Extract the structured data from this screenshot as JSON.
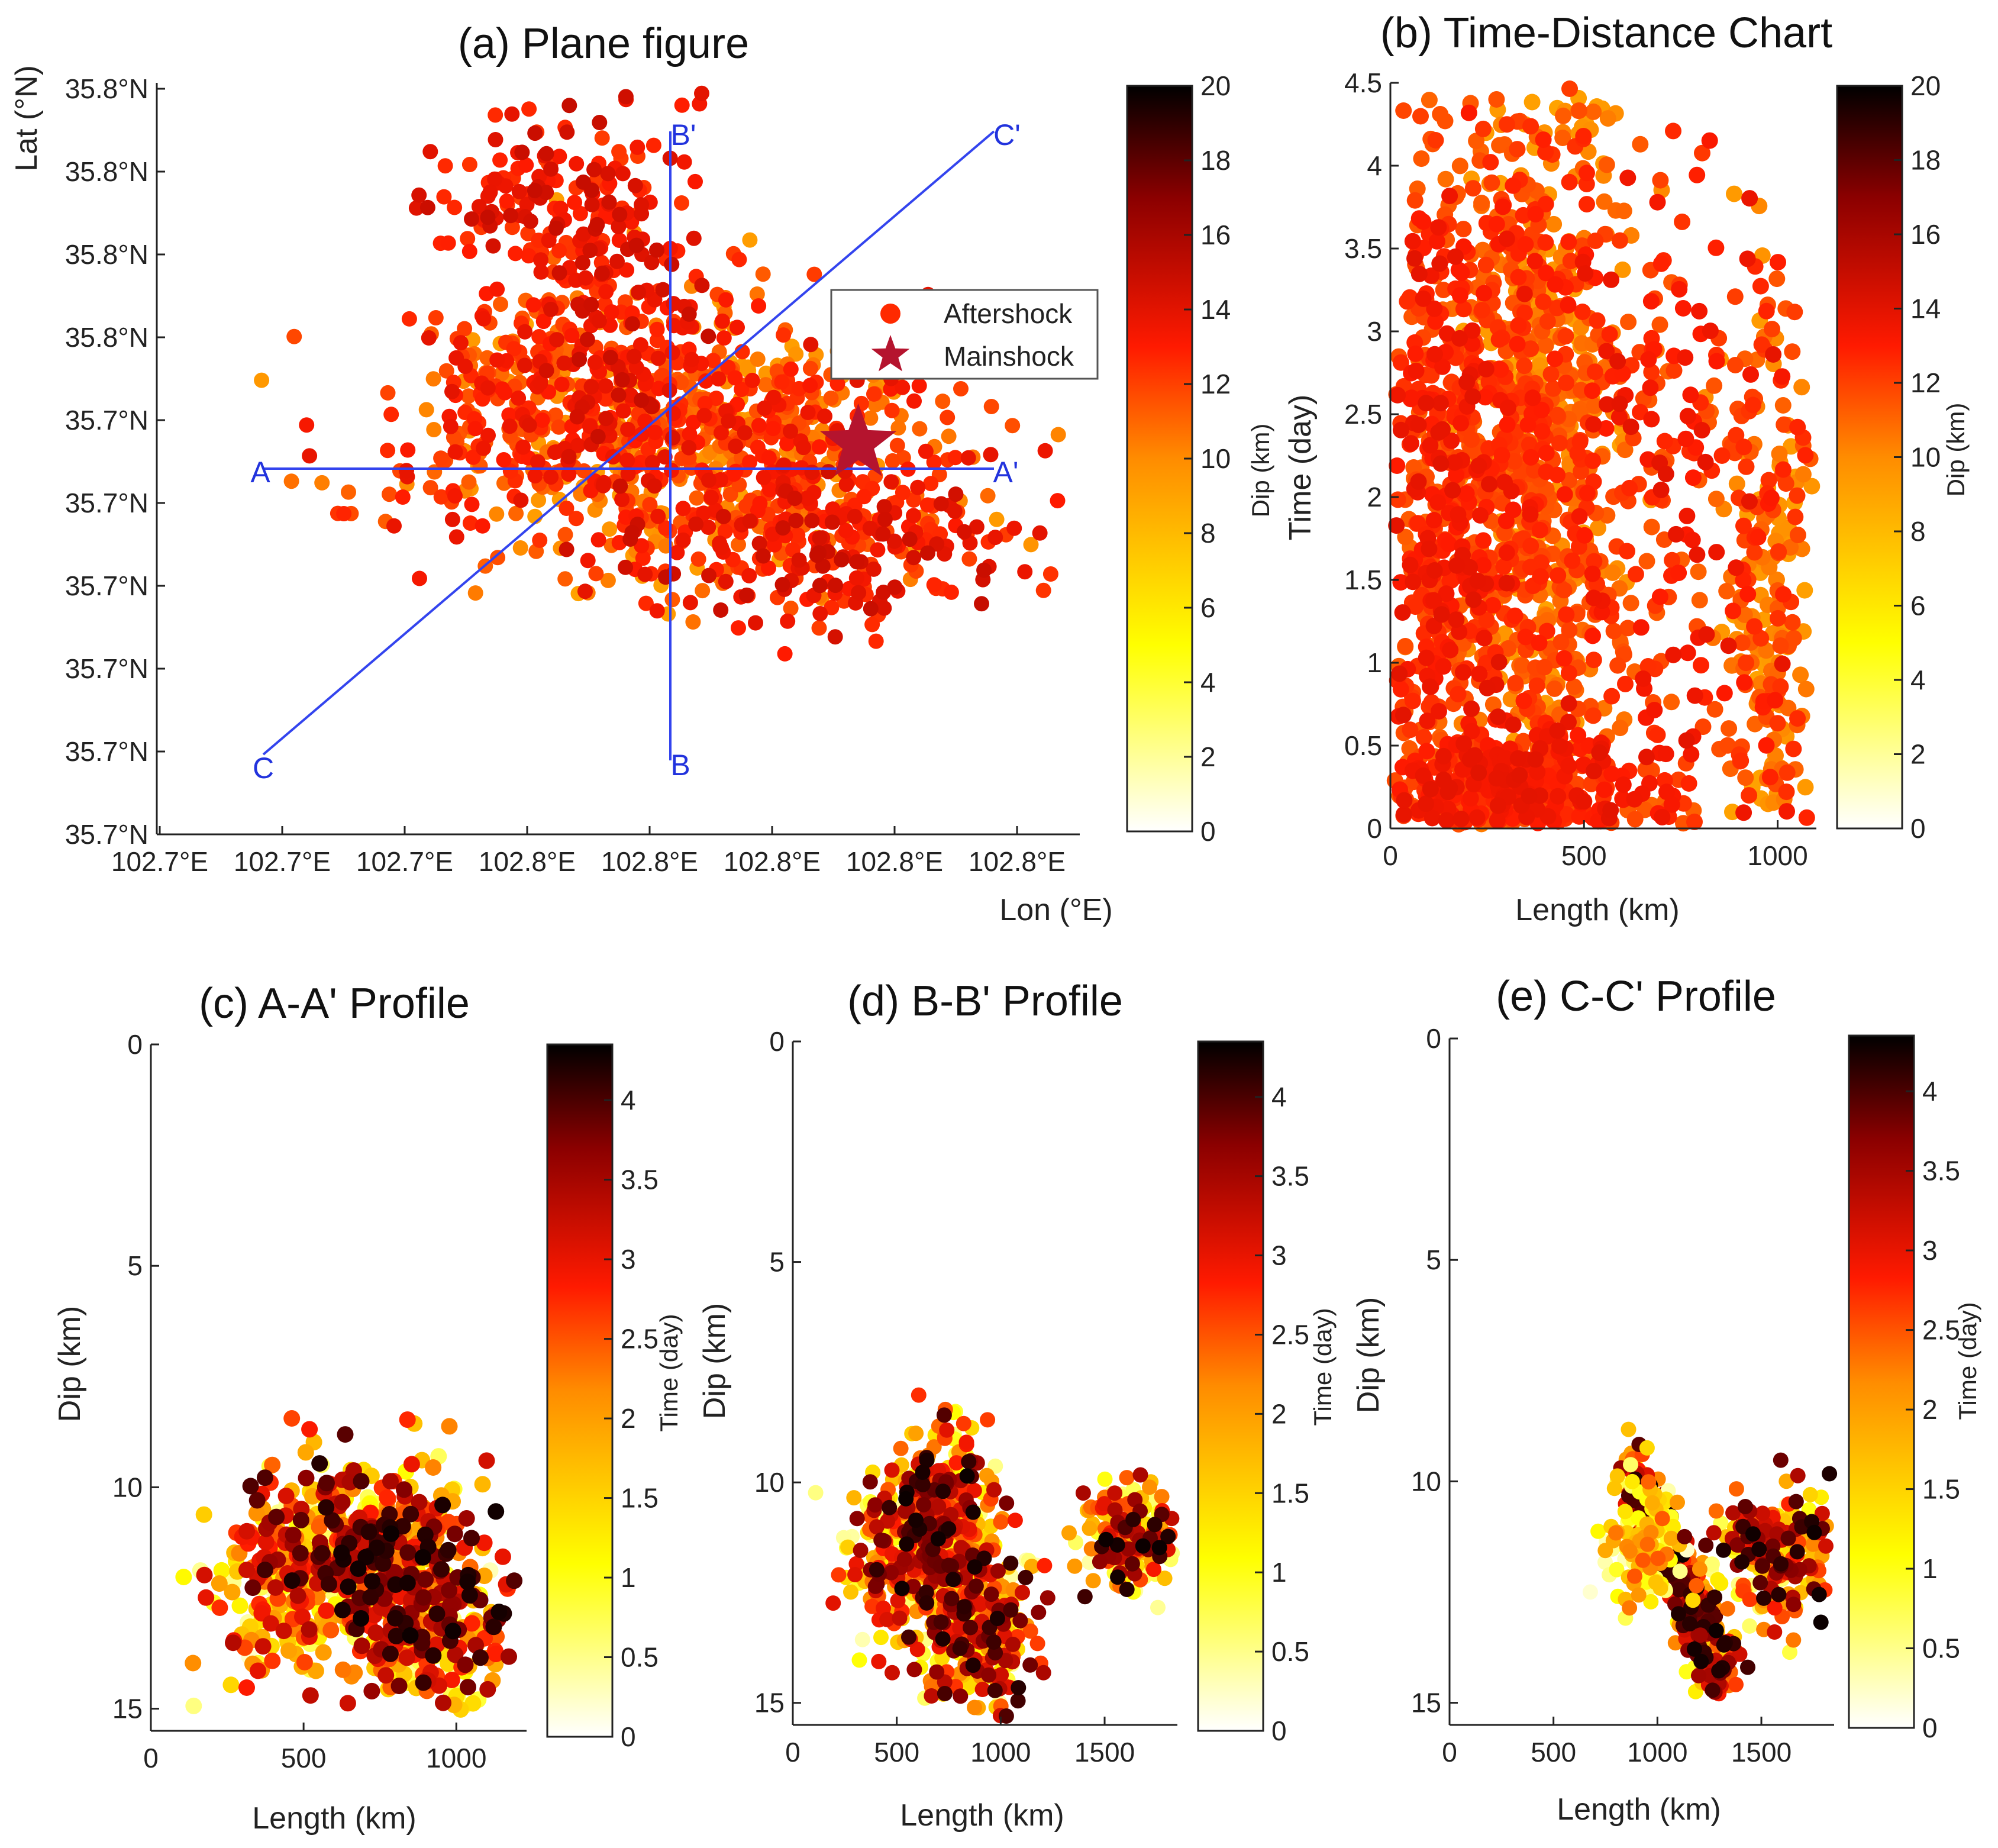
{
  "colors": {
    "profile_line": "#3344ee",
    "mainshock": "#b5142e",
    "colormap": [
      "#ffffff",
      "#ffff00",
      "#ff8c00",
      "#ff1a00",
      "#8b0000",
      "#000000"
    ]
  },
  "chart_data": [
    {
      "type": "scatter",
      "panel": "a",
      "title": "(a) Plane figure",
      "xlabel": "Lon (°E)",
      "ylabel": "Lat (°N)",
      "xtick_labels": [
        "102.7°E",
        "102.7°E",
        "102.7°E",
        "102.8°E",
        "102.8°E",
        "102.8°E",
        "102.8°E",
        "102.8°E"
      ],
      "ytick_labels": [
        "35.7°N",
        "35.7°N",
        "35.7°N",
        "35.7°N",
        "35.7°N",
        "35.7°N",
        "35.8°N",
        "35.8°N",
        "35.8°N",
        "35.8°N"
      ],
      "colorbar": {
        "label": "Dip (km)",
        "ticks": [
          "0",
          "2",
          "4",
          "6",
          "8",
          "10",
          "12",
          "14",
          "16",
          "18",
          "20"
        ],
        "range": [
          0,
          20
        ]
      },
      "legend": {
        "position": "right",
        "entries": [
          "Aftershock",
          "Mainshock"
        ]
      },
      "profile_lines": [
        {
          "start_label": "A",
          "end_label": "A'"
        },
        {
          "start_label": "B",
          "end_label": "B'"
        },
        {
          "start_label": "C",
          "end_label": "C'"
        }
      ],
      "clusters": [
        {
          "cx": 0.58,
          "cy": 0.53,
          "sx": 0.15,
          "sy": 0.09,
          "n": 900,
          "c": [
            9,
            14
          ]
        },
        {
          "cx": 0.42,
          "cy": 0.85,
          "sx": 0.06,
          "sy": 0.05,
          "n": 120,
          "c": [
            12,
            15
          ]
        },
        {
          "cx": 0.5,
          "cy": 0.7,
          "sx": 0.05,
          "sy": 0.12,
          "n": 160,
          "c": [
            12,
            15
          ]
        },
        {
          "cx": 0.4,
          "cy": 0.6,
          "sx": 0.05,
          "sy": 0.08,
          "n": 120,
          "c": [
            11,
            14
          ]
        },
        {
          "cx": 0.72,
          "cy": 0.38,
          "sx": 0.1,
          "sy": 0.05,
          "n": 200,
          "c": [
            12,
            15
          ]
        }
      ],
      "mainshock": {
        "x": 0.76,
        "y": 0.52
      }
    },
    {
      "type": "scatter",
      "panel": "b",
      "title": "(b) Time-Distance Chart",
      "xlabel": "Length (km)",
      "ylabel": "Time (day)",
      "xlim": [
        0,
        1100
      ],
      "ylim": [
        0,
        4.5
      ],
      "xticks": [
        0,
        500,
        1000
      ],
      "yticks": [
        0,
        0.5,
        1,
        1.5,
        2,
        2.5,
        3,
        3.5,
        4,
        4.5
      ],
      "colorbar": {
        "label": "Dip (km)",
        "ticks": [
          "0",
          "2",
          "4",
          "6",
          "8",
          "10",
          "12",
          "14",
          "16",
          "18",
          "20"
        ],
        "range": [
          0,
          20
        ]
      },
      "clusters": [
        {
          "cx": 380,
          "cy": 2.2,
          "sx": 110,
          "sy": 1.3,
          "n": 900,
          "c": [
            9,
            13
          ]
        },
        {
          "cx": 150,
          "cy": 1.8,
          "sx": 90,
          "sy": 1.3,
          "n": 650,
          "c": [
            11,
            14
          ]
        },
        {
          "cx": 700,
          "cy": 1.8,
          "sx": 150,
          "sy": 1.2,
          "n": 280,
          "c": [
            11,
            14
          ]
        },
        {
          "cx": 980,
          "cy": 1.2,
          "sx": 60,
          "sy": 1.1,
          "n": 260,
          "c": [
            9,
            13
          ]
        },
        {
          "cx": 300,
          "cy": 0.25,
          "sx": 180,
          "sy": 0.18,
          "n": 450,
          "c": [
            11,
            14
          ]
        }
      ]
    },
    {
      "type": "scatter",
      "panel": "c",
      "title": "(c) A-A' Profile",
      "xlabel": "Length (km)",
      "ylabel": "Dip (km)",
      "xlim": [
        0,
        1230
      ],
      "ylim": [
        0,
        15.5
      ],
      "y_inverted": true,
      "xticks": [
        0,
        500,
        1000
      ],
      "yticks": [
        0,
        5,
        10,
        15
      ],
      "colorbar": {
        "label": "Time (day)",
        "ticks": [
          "0",
          "0.5",
          "1",
          "1.5",
          "2",
          "2.5",
          "3",
          "3.5",
          "4"
        ],
        "range": [
          0,
          4.35
        ]
      },
      "clusters": [
        {
          "cx": 690,
          "cy": 11.2,
          "sx": 170,
          "sy": 0.9,
          "n": 420,
          "c": [
            0.5,
            4.3
          ]
        },
        {
          "cx": 900,
          "cy": 13.0,
          "sx": 130,
          "sy": 1.0,
          "n": 280,
          "c": [
            0.3,
            4.3
          ]
        },
        {
          "cx": 450,
          "cy": 12.6,
          "sx": 120,
          "sy": 1.0,
          "n": 150,
          "c": [
            0.2,
            3.5
          ]
        }
      ]
    },
    {
      "type": "scatter",
      "panel": "d",
      "title": "(d) B-B' Profile",
      "xlabel": "Length (km)",
      "ylabel": "Dip (km)",
      "xlim": [
        0,
        1850
      ],
      "ylim": [
        0,
        15.5
      ],
      "y_inverted": true,
      "xticks": [
        0,
        500,
        1000,
        1500
      ],
      "yticks": [
        0,
        5,
        10,
        15
      ],
      "colorbar": {
        "label": "Time (day)",
        "ticks": [
          "0",
          "0.5",
          "1",
          "1.5",
          "2",
          "2.5",
          "3",
          "3.5",
          "4"
        ],
        "range": [
          0,
          4.35
        ]
      },
      "clusters": [
        {
          "cx": 720,
          "cy": 11.0,
          "sx": 110,
          "sy": 1.0,
          "n": 380,
          "c": [
            0.5,
            4.3
          ]
        },
        {
          "cx": 880,
          "cy": 13.4,
          "sx": 140,
          "sy": 0.9,
          "n": 280,
          "c": [
            0.2,
            4.3
          ]
        },
        {
          "cx": 470,
          "cy": 11.8,
          "sx": 110,
          "sy": 1.0,
          "n": 140,
          "c": [
            0.3,
            3.8
          ]
        },
        {
          "cx": 1650,
          "cy": 11.2,
          "sx": 130,
          "sy": 0.6,
          "n": 170,
          "c": [
            0.3,
            4.3
          ]
        }
      ]
    },
    {
      "type": "scatter",
      "panel": "e",
      "title": "(e) C-C' Profile",
      "xlabel": "Length (km)",
      "ylabel": "Dip (km)",
      "xlim": [
        0,
        1850
      ],
      "ylim": [
        0,
        15.5
      ],
      "y_inverted": true,
      "xticks": [
        0,
        500,
        1000,
        1500
      ],
      "yticks": [
        0,
        5,
        10,
        15
      ],
      "colorbar": {
        "label": "Time (day)",
        "ticks": [
          "0",
          "0.5",
          "1",
          "1.5",
          "2",
          "2.5",
          "3",
          "3.5",
          "4"
        ],
        "range": [
          0,
          4.35
        ]
      },
      "diagonal": {
        "x0": 870,
        "y0": 9.7,
        "x1": 1320,
        "y1": 14.5,
        "width": 45,
        "n": 380,
        "c": [
          0.8,
          4.3
        ]
      },
      "clusters": [
        {
          "cx": 920,
          "cy": 11.3,
          "sx": 90,
          "sy": 0.7,
          "n": 120,
          "c": [
            0.2,
            2.5
          ]
        },
        {
          "cx": 1550,
          "cy": 11.6,
          "sx": 140,
          "sy": 0.8,
          "n": 220,
          "c": [
            0.3,
            4.3
          ]
        }
      ]
    }
  ]
}
